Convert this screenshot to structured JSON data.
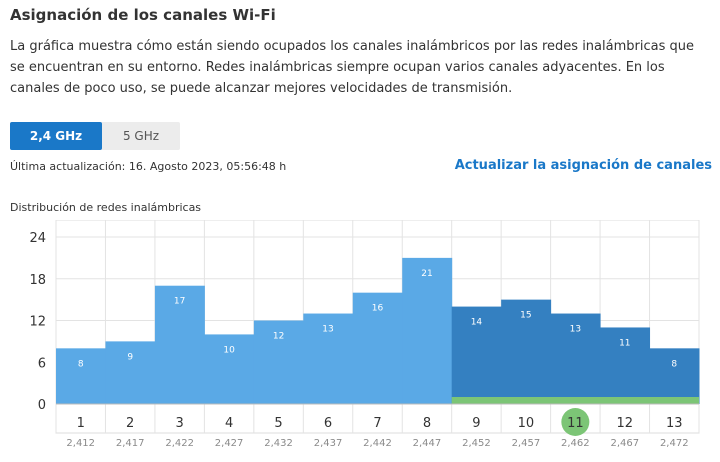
{
  "page": {
    "title": "Asignación de los canales Wi-Fi",
    "description": "La gráfica muestra cómo están siendo ocupados los canales inalámbricos por las redes inalámbricas que se encuentran en su entorno. Redes inalámbricas siempre ocupan varios canales adyacentes. En los canales de poco uso, se puede alcanzar mejores velocidades de transmisión."
  },
  "tabs": [
    {
      "label": "2,4 GHz",
      "active": true
    },
    {
      "label": "5 GHz",
      "active": false
    }
  ],
  "status": {
    "last_update": "Última actualización: 16. Agosto 2023, 05:56:48 h",
    "refresh_link": "Actualizar la asignación de canales"
  },
  "colors": {
    "accent": "#1a78c8",
    "bar_light": "#5aa9e6",
    "bar_dark": "#3480c1",
    "own_network": "#7cc576"
  },
  "chart_data": {
    "type": "bar",
    "title": "Distribución de redes inalámbricas",
    "categories": [
      "1",
      "2",
      "3",
      "4",
      "5",
      "6",
      "7",
      "8",
      "9",
      "10",
      "11",
      "12",
      "13"
    ],
    "frequencies": [
      "2,412",
      "2,417",
      "2,422",
      "2,427",
      "2,432",
      "2,437",
      "2,442",
      "2,447",
      "2,452",
      "2,457",
      "2,462",
      "2,467",
      "2,472"
    ],
    "values": [
      8,
      9,
      17,
      10,
      12,
      13,
      16,
      21,
      14,
      15,
      13,
      11,
      8
    ],
    "y_ticks": [
      0,
      6,
      12,
      18,
      24
    ],
    "ylim": [
      0,
      24
    ],
    "highlighted_channel": "11",
    "own_network_channels": [
      "9",
      "10",
      "11",
      "12",
      "13"
    ],
    "grid": true
  }
}
